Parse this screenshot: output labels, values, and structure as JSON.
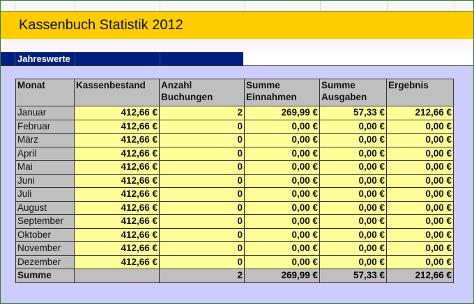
{
  "title": "Kassenbuch Statistik 2012",
  "section": "Jahreswerte",
  "colors": {
    "title_bg": "#ffcc00",
    "section_bg": "#001f7f",
    "panel_bg": "#ccccff",
    "header_bg": "#bfbfbf",
    "value_bg": "#ffff99"
  },
  "columns": {
    "monat": "Monat",
    "kassenbestand": "Kassenbestand",
    "anzahl": "Anzahl Buchungen",
    "einnahmen": "Summe Einnahmen",
    "ausgaben": "Summe Ausgaben",
    "ergebnis": "Ergebnis"
  },
  "rows": [
    {
      "monat": "Januar",
      "kassenbestand": "412,66 €",
      "anzahl": "2",
      "einnahmen": "269,99 €",
      "ausgaben": "57,33 €",
      "ergebnis": "212,66 €"
    },
    {
      "monat": "Februar",
      "kassenbestand": "412,66 €",
      "anzahl": "0",
      "einnahmen": "0,00 €",
      "ausgaben": "0,00 €",
      "ergebnis": "0,00 €"
    },
    {
      "monat": "März",
      "kassenbestand": "412,66 €",
      "anzahl": "0",
      "einnahmen": "0,00 €",
      "ausgaben": "0,00 €",
      "ergebnis": "0,00 €"
    },
    {
      "monat": "April",
      "kassenbestand": "412,66 €",
      "anzahl": "0",
      "einnahmen": "0,00 €",
      "ausgaben": "0,00 €",
      "ergebnis": "0,00 €"
    },
    {
      "monat": "Mai",
      "kassenbestand": "412,66 €",
      "anzahl": "0",
      "einnahmen": "0,00 €",
      "ausgaben": "0,00 €",
      "ergebnis": "0,00 €"
    },
    {
      "monat": "Juni",
      "kassenbestand": "412,66 €",
      "anzahl": "0",
      "einnahmen": "0,00 €",
      "ausgaben": "0,00 €",
      "ergebnis": "0,00 €"
    },
    {
      "monat": "Juli",
      "kassenbestand": "412,66 €",
      "anzahl": "0",
      "einnahmen": "0,00 €",
      "ausgaben": "0,00 €",
      "ergebnis": "0,00 €"
    },
    {
      "monat": "August",
      "kassenbestand": "412,66 €",
      "anzahl": "0",
      "einnahmen": "0,00 €",
      "ausgaben": "0,00 €",
      "ergebnis": "0,00 €"
    },
    {
      "monat": "September",
      "kassenbestand": "412,66 €",
      "anzahl": "0",
      "einnahmen": "0,00 €",
      "ausgaben": "0,00 €",
      "ergebnis": "0,00 €"
    },
    {
      "monat": "Oktober",
      "kassenbestand": "412,66 €",
      "anzahl": "0",
      "einnahmen": "0,00 €",
      "ausgaben": "0,00 €",
      "ergebnis": "0,00 €"
    },
    {
      "monat": "November",
      "kassenbestand": "412,66 €",
      "anzahl": "0",
      "einnahmen": "0,00 €",
      "ausgaben": "0,00 €",
      "ergebnis": "0,00 €"
    },
    {
      "monat": "Dezember",
      "kassenbestand": "412,66 €",
      "anzahl": "0",
      "einnahmen": "0,00 €",
      "ausgaben": "0,00 €",
      "ergebnis": "0,00 €"
    }
  ],
  "summe": {
    "monat": "Summe",
    "kassenbestand": "",
    "anzahl": "2",
    "einnahmen": "269,99 €",
    "ausgaben": "57,33 €",
    "ergebnis": "212,66 €"
  }
}
